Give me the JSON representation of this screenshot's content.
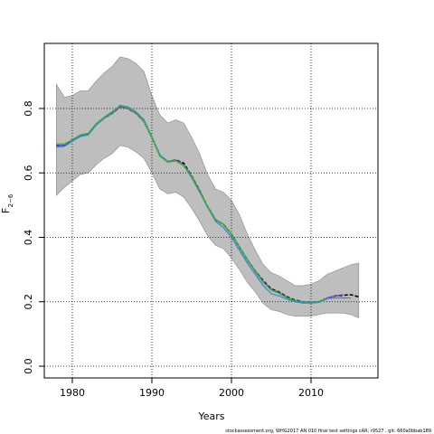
{
  "chart_data": {
    "type": "line",
    "xlabel": "Years",
    "ylabel_main": "F",
    "ylabel_sub": "2−6",
    "footer": "stockassessment.org, WHG2017 AN 010 final test settings cAR, r9527 , git: 660a0bbab189",
    "x": [
      1978,
      1979,
      1980,
      1981,
      1982,
      1983,
      1984,
      1985,
      1986,
      1987,
      1988,
      1989,
      1990,
      1991,
      1992,
      1993,
      1994,
      1995,
      1996,
      1997,
      1998,
      1999,
      2000,
      2001,
      2002,
      2003,
      2004,
      2005,
      2006,
      2007,
      2008,
      2009,
      2010,
      2011,
      2012,
      2013,
      2014,
      2015,
      2016
    ],
    "xlim": [
      1976.48,
      2018.41
    ],
    "ylim": [
      -0.0365,
      1.002
    ],
    "xticks": [
      1980,
      1990,
      2000,
      2010
    ],
    "yticks": [
      {
        "value": 0,
        "label": "0.0"
      },
      {
        "value": 0.2,
        "label": "0.2"
      },
      {
        "value": 0.4,
        "label": "0.4"
      },
      {
        "value": 0.6,
        "label": "0.6"
      },
      {
        "value": 0.8,
        "label": "0.8"
      }
    ],
    "grid": true,
    "band": {
      "color": "#bebebe",
      "upper": [
        0.875,
        0.835,
        0.84,
        0.855,
        0.855,
        0.885,
        0.91,
        0.93,
        0.96,
        0.955,
        0.94,
        0.915,
        0.84,
        0.78,
        0.755,
        0.765,
        0.755,
        0.71,
        0.66,
        0.595,
        0.55,
        0.54,
        0.515,
        0.47,
        0.41,
        0.36,
        0.315,
        0.29,
        0.28,
        0.265,
        0.25,
        0.25,
        0.255,
        0.265,
        0.285,
        0.295,
        0.305,
        0.315,
        0.32
      ],
      "lower": [
        0.53,
        0.555,
        0.575,
        0.595,
        0.6,
        0.625,
        0.645,
        0.66,
        0.685,
        0.68,
        0.665,
        0.645,
        0.6,
        0.55,
        0.535,
        0.54,
        0.525,
        0.49,
        0.45,
        0.405,
        0.375,
        0.365,
        0.335,
        0.3,
        0.26,
        0.23,
        0.195,
        0.175,
        0.17,
        0.16,
        0.155,
        0.155,
        0.155,
        0.16,
        0.165,
        0.165,
        0.165,
        0.16,
        0.15
      ]
    },
    "series": [
      {
        "color": "#000000",
        "dashed": true,
        "values": [
          0.685,
          0.685,
          0.7,
          0.715,
          0.72,
          0.75,
          0.77,
          0.785,
          0.805,
          0.8,
          0.785,
          0.76,
          0.71,
          0.655,
          0.635,
          0.64,
          0.63,
          0.59,
          0.545,
          0.495,
          0.455,
          0.44,
          0.41,
          0.37,
          0.33,
          0.295,
          0.265,
          0.24,
          0.23,
          0.215,
          0.205,
          0.2,
          0.2,
          0.2,
          0.21,
          0.218,
          0.22,
          0.222,
          0.215
        ]
      },
      {
        "color": "#7b3fb8",
        "dashed": false,
        "values": [
          0.685,
          0.685,
          0.7,
          0.715,
          0.72,
          0.75,
          0.77,
          0.785,
          0.805,
          0.8,
          0.785,
          0.76,
          0.71,
          0.655,
          0.635,
          0.64,
          0.625,
          0.59,
          0.545,
          0.495,
          0.455,
          0.44,
          0.41,
          0.37,
          0.33,
          0.295,
          0.262,
          0.238,
          0.228,
          0.213,
          0.203,
          0.198,
          0.198,
          0.2,
          0.212,
          0.218,
          0.222,
          null,
          null
        ]
      },
      {
        "color": "#2a8fd8",
        "dashed": false,
        "values": [
          0.68,
          0.682,
          0.698,
          0.713,
          0.718,
          0.748,
          0.77,
          0.787,
          0.81,
          0.805,
          0.79,
          0.765,
          0.712,
          0.655,
          0.635,
          0.638,
          0.622,
          0.585,
          0.54,
          0.493,
          0.45,
          0.43,
          0.4,
          0.36,
          0.32,
          0.285,
          0.25,
          0.225,
          0.218,
          0.208,
          0.2,
          0.196,
          0.196,
          0.198,
          0.21,
          0.212,
          0.212,
          0.212,
          null
        ]
      },
      {
        "color": "#3fae2a",
        "dashed": false,
        "values": [
          0.69,
          0.69,
          0.703,
          0.718,
          0.723,
          0.753,
          0.773,
          0.79,
          0.808,
          0.802,
          0.786,
          0.76,
          0.708,
          0.652,
          0.633,
          0.637,
          0.624,
          0.588,
          0.543,
          0.495,
          0.455,
          0.44,
          0.41,
          0.37,
          0.33,
          0.293,
          0.26,
          0.236,
          0.226,
          0.212,
          0.203,
          0.2,
          0.2,
          0.2,
          0.208,
          null,
          null,
          null,
          null
        ]
      }
    ]
  }
}
